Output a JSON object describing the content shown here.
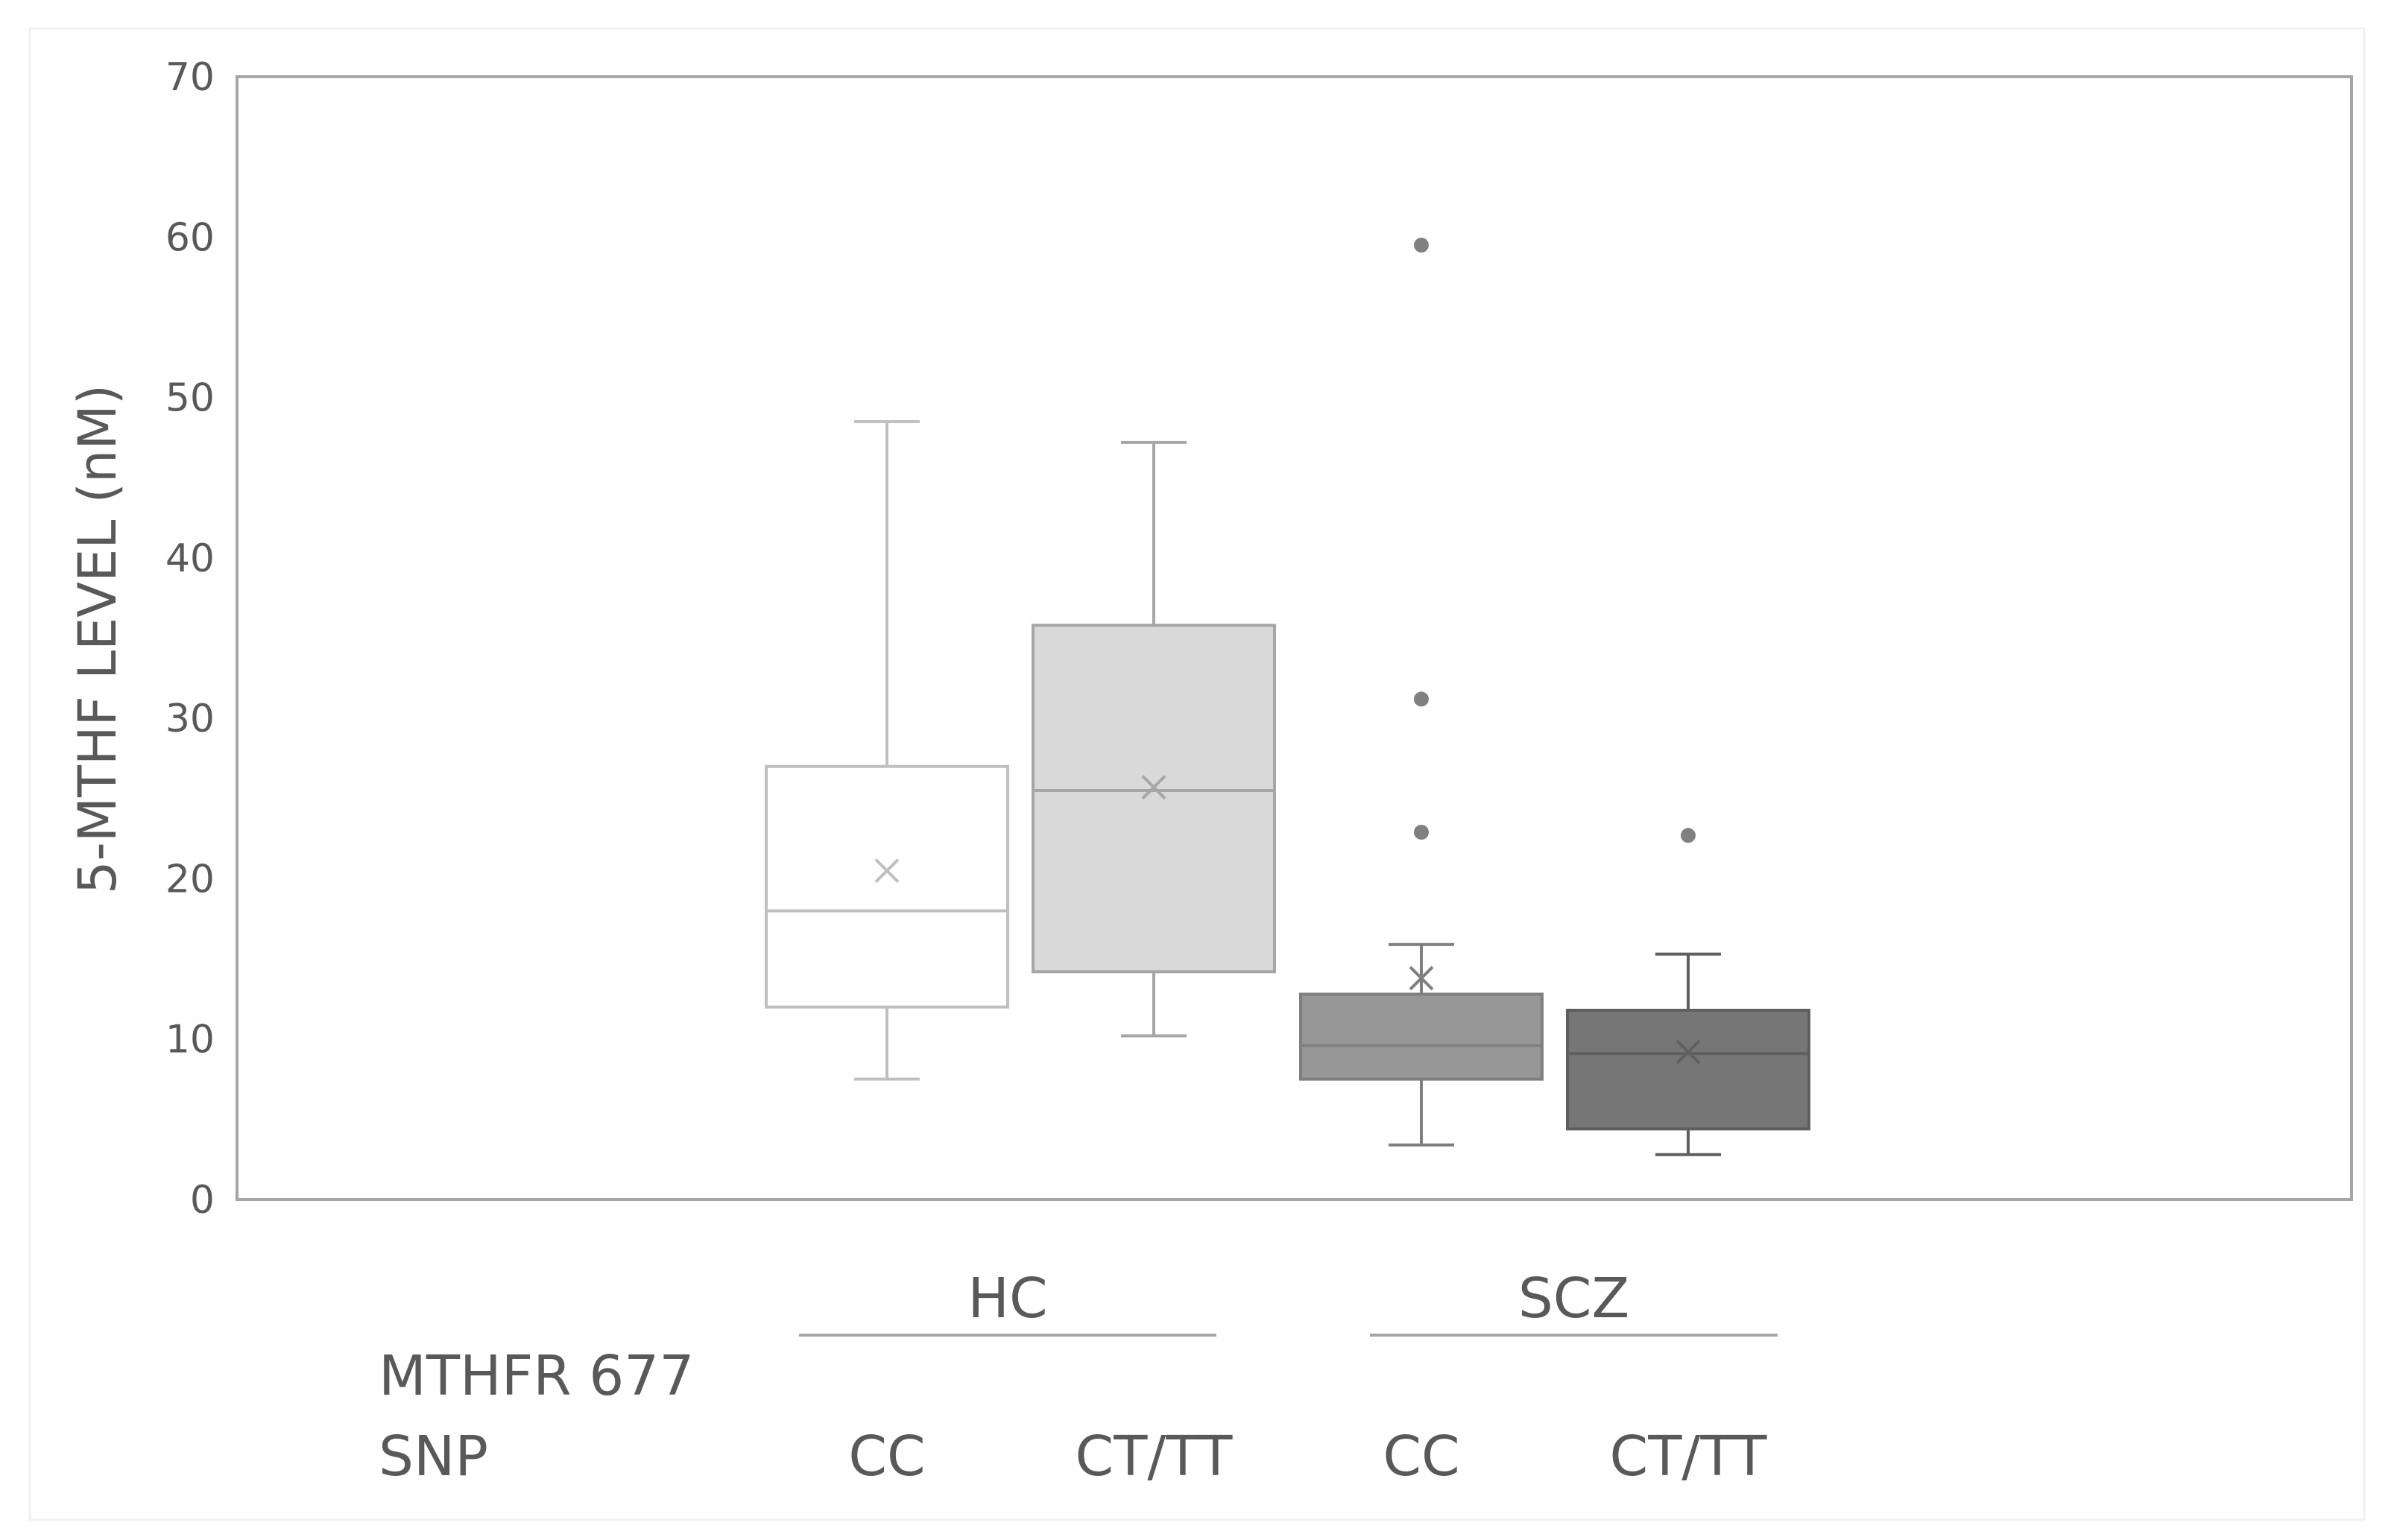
{
  "chart_data": {
    "type": "box",
    "ylabel": "5-MTHF LEVEL (nM)",
    "ylim": [
      0,
      70
    ],
    "y_ticks": [
      "0",
      "10",
      "20",
      "30",
      "40",
      "50",
      "60",
      "70"
    ],
    "grid": false,
    "legend": "none",
    "row_label": [
      "MTHFR 677",
      "SNP"
    ],
    "groups": [
      {
        "name": "HC",
        "categories": [
          "CC",
          "CT/TT"
        ]
      },
      {
        "name": "SCZ",
        "categories": [
          "CC",
          "CT/TT"
        ]
      }
    ],
    "boxes": [
      {
        "group": "HC",
        "category": "CC",
        "min": 7.5,
        "q1": 12,
        "median": 18,
        "q3": 27,
        "max": 48.5,
        "mean": 20.5,
        "outliers": [],
        "fill": "#ffffff",
        "stroke": "#bfbfbf"
      },
      {
        "group": "HC",
        "category": "CT/TT",
        "min": 10.2,
        "q1": 14.2,
        "median": 25.5,
        "q3": 35.8,
        "max": 47.2,
        "mean": 25.7,
        "outliers": [],
        "fill": "#d9d9d9",
        "stroke": "#a6a6a6"
      },
      {
        "group": "SCZ",
        "category": "CC",
        "min": 3.4,
        "q1": 7.5,
        "median": 9.6,
        "q3": 12.8,
        "max": 15.9,
        "mean": 13.8,
        "outliers": [
          59.5,
          31.2,
          22.9
        ],
        "fill": "#969696",
        "stroke": "#7f7f7f"
      },
      {
        "group": "SCZ",
        "category": "CT/TT",
        "min": 2.8,
        "q1": 4.4,
        "median": 9.1,
        "q3": 11.8,
        "max": 15.3,
        "mean": 9.2,
        "outliers": [
          22.7
        ],
        "fill": "#767676",
        "stroke": "#5f5f5f"
      }
    ]
  }
}
